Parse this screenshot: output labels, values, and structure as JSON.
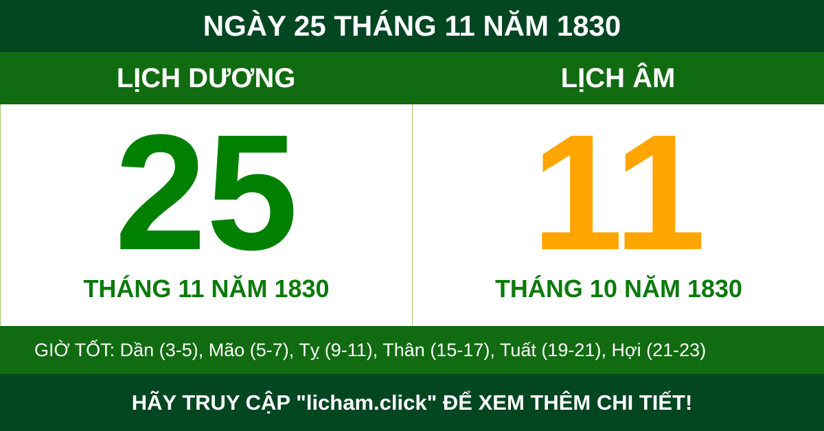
{
  "title": "NGÀY 25 THÁNG 11 NĂM 1830",
  "solar": {
    "heading": "LỊCH DƯƠNG",
    "day": "25",
    "month_year": "THÁNG 11 NĂM 1830"
  },
  "lunar": {
    "heading": "LỊCH ÂM",
    "day": "11",
    "month_year": "THÁNG 10 NĂM 1830"
  },
  "good_hours": "GIỜ TỐT: Dần (3-5), Mão (5-7), Tỵ (9-11), Thân (15-17), Tuất (19-21), Hợi (21-23)",
  "footer": "HÃY TRUY CẬP \"licham.click\" ĐỂ XEM THÊM CHI TIẾT!",
  "colors": {
    "dark_green": "#034622",
    "green": "#116b11",
    "solar_day": "#008000",
    "lunar_day": "#ffa500"
  }
}
